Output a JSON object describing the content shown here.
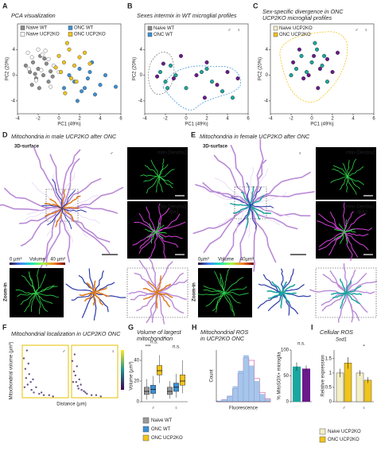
{
  "panels": {
    "A": {
      "label": "A",
      "title": "PCA visualization",
      "xlabel": "PC1 (49%)",
      "ylabel": "PC2 (20%)",
      "xlim": [
        -4,
        6
      ],
      "ylim": [
        -6,
        8
      ],
      "xticks": [
        -4,
        -2,
        0,
        2,
        4,
        6
      ],
      "yticks": [
        -4,
        0,
        4
      ],
      "series": [
        {
          "name": "Naive WT",
          "color": "#8c8c8c",
          "edge": "#555",
          "x": [
            -3.2,
            -2.8,
            -2.5,
            -2.2,
            -2,
            -1.8,
            -1.5,
            -1.2,
            -1,
            -0.8,
            -2.6,
            -1.9,
            -1.4,
            -0.6,
            -2.3
          ],
          "values": [
            1.5,
            0.5,
            2,
            -0.5,
            1,
            3,
            0,
            1.8,
            -1,
            0.6,
            -1.5,
            -2,
            2.6,
            -0.2,
            0.2
          ]
        },
        {
          "name": "Naive UCP2KO",
          "color": "#ffffff",
          "edge": "#666",
          "x": [
            -3,
            -2.6,
            -2,
            -1.6,
            -1,
            -0.5,
            -1.7,
            -2.2,
            -0.8,
            -1.3,
            -2.9,
            0
          ],
          "values": [
            3.5,
            2.8,
            4,
            3.2,
            2.5,
            1.5,
            0.8,
            -0.8,
            -1.8,
            3.8,
            1,
            0.5
          ]
        },
        {
          "name": "ONC WT",
          "color": "#3a8fd6",
          "edge": "#555",
          "x": [
            1,
            1.5,
            2,
            2.5,
            3,
            3.5,
            4,
            4.5,
            2.2,
            3.2,
            1.8,
            5.5,
            0.5,
            2.8
          ],
          "values": [
            0,
            -1,
            1,
            -2,
            0.5,
            -3,
            -1.5,
            0,
            -2.5,
            2,
            -4,
            -1.8,
            -2,
            -0.5
          ]
        },
        {
          "name": "ONC UCP2KO",
          "color": "#f2c418",
          "edge": "#555",
          "x": [
            0,
            0.5,
            1,
            1.5,
            2,
            0.2,
            1.2,
            2.5,
            0.8,
            -0.3,
            1.7,
            3,
            0.6
          ],
          "values": [
            3,
            2,
            4,
            1.5,
            2.8,
            0.5,
            -0.5,
            3.5,
            5,
            1.2,
            -1,
            1.8,
            -2.8
          ]
        }
      ]
    },
    "B": {
      "label": "B",
      "title": [
        "Sexes intermix in WT microglial profiles"
      ],
      "xlabel": "PC1 (49%)",
      "ylabel": "PC2 (20%)",
      "xlim": [
        -4,
        6
      ],
      "ylim": [
        -6,
        8
      ],
      "xticks": [
        -4,
        -2,
        0,
        2,
        4,
        6
      ],
      "yticks": [
        -4,
        0,
        4
      ],
      "groups": [
        {
          "name": "Naive WT",
          "color": "#8c8c8c"
        },
        {
          "name": "ONC WT",
          "color": "#3a8fd6"
        }
      ],
      "series": [
        {
          "name": "♂",
          "color": "#1aa7a0",
          "edge": "#333",
          "x": [
            -2.5,
            -2,
            -1.5,
            -1,
            0,
            1.5,
            2.5,
            3.5,
            4.5,
            2,
            -1.8
          ],
          "values": [
            0.5,
            -1,
            1.5,
            0,
            -2,
            0.5,
            -1,
            -2.5,
            -3.5,
            1,
            -2
          ]
        },
        {
          "name": "♀",
          "color": "#6b1a8c",
          "edge": "#333",
          "x": [
            -2.2,
            -1.2,
            -0.5,
            1,
            2,
            3,
            4,
            5,
            -2.8,
            1.8
          ],
          "values": [
            1.8,
            -0.5,
            3,
            0,
            2,
            -1.5,
            0.5,
            -0.5,
            -0.2,
            -3.5
          ]
        }
      ]
    },
    "C": {
      "label": "C",
      "title": [
        "Sex-specific divergence in ONC",
        "UCP2KO microglial profiles"
      ],
      "xlabel": "PC1 (49%)",
      "ylabel": "PC2 (20%)",
      "xlim": [
        -4,
        6
      ],
      "ylim": [
        -6,
        8
      ],
      "xticks": [
        -4,
        -2,
        0,
        2,
        4,
        6
      ],
      "yticks": [
        -4,
        0,
        4
      ],
      "groups": [
        {
          "name": "Naive UCP2KO",
          "color": "#f5efc6"
        },
        {
          "name": "ONC UCP2KO",
          "color": "#f2c418"
        }
      ],
      "series": [
        {
          "name": "♂",
          "color": "#1aa7a0",
          "edge": "#333",
          "x": [
            -1.5,
            -1,
            -0.5,
            0,
            0.5,
            1,
            1.5,
            -2,
            0.3,
            1.2
          ],
          "values": [
            1,
            3,
            0.5,
            2,
            4,
            1.5,
            -1,
            0,
            5,
            3
          ]
        },
        {
          "name": "♀",
          "color": "#6b1a8c",
          "edge": "#333",
          "x": [
            -1.8,
            -0.8,
            0.2,
            0.8,
            1.5,
            2,
            -1.2,
            0.6,
            2.5,
            -0.3
          ],
          "values": [
            2,
            -0.5,
            3,
            1,
            2.5,
            0.5,
            4,
            -2,
            3.5,
            0
          ]
        }
      ]
    },
    "D": {
      "label": "D",
      "title": "Mitochondria in male UCP2KO after ONC",
      "view": "3D-surface",
      "sex": "♂",
      "channel_top": "mito-Dendra2",
      "channel_bottom": [
        "mito-Dendra2",
        "IBA1"
      ],
      "colorbar": {
        "min": "0 µm³",
        "name": "Volume",
        "max": "40 µm³"
      },
      "zoom": "Zoom-in"
    },
    "E": {
      "label": "E",
      "title": "Mitochondria in female UCP2KO after ONC",
      "view": "3D-surface",
      "sex": "♀",
      "channel_top": "mito-Dendra2",
      "channel_bottom": [
        "mito-Dendra2",
        "IBA1"
      ],
      "colorbar": {
        "min": "0µm³",
        "name": "Volume",
        "max": "40µm³"
      },
      "zoom": "Zoom-in"
    },
    "F": {
      "label": "F",
      "title": "Mitochondrial localization in UCP2KO ONC",
      "xlabel": "Distance (µm)",
      "ylabel": "Mitochondrial volume (µm³)",
      "xlim": [
        0,
        60
      ],
      "ylim": [
        0,
        40
      ],
      "series": [
        {
          "name": "♂",
          "color": "#46266e",
          "x": [
            2,
            4,
            5,
            7,
            9,
            12,
            15,
            18,
            22,
            28,
            35,
            40,
            8,
            3,
            11,
            25,
            6,
            14
          ],
          "values": [
            30,
            22,
            15,
            10,
            18,
            6,
            4,
            8,
            3,
            2,
            2,
            1,
            26,
            8,
            12,
            4,
            36,
            14
          ]
        },
        {
          "name": "♀",
          "color": "#46266e",
          "x": [
            1,
            3,
            5,
            6,
            8,
            10,
            13,
            16,
            20,
            26,
            32,
            38,
            4,
            9,
            18,
            7,
            2,
            12
          ],
          "values": [
            28,
            20,
            17,
            12,
            9,
            14,
            6,
            5,
            3,
            2,
            2,
            1,
            33,
            7,
            4,
            24,
            12,
            10
          ]
        }
      ]
    },
    "G": {
      "label": "G",
      "title": [
        "Volume of largest",
        "mitochondrion"
      ],
      "ylabel": "Volume (µm³)",
      "ylim": [
        0,
        50
      ],
      "yticks": [
        0,
        20,
        40
      ],
      "categories": [
        "♂",
        "♀"
      ],
      "annotations": [
        "***",
        "n.s.",
        "n.s.",
        "*"
      ],
      "series": [
        {
          "name": "Naive WT",
          "color": "#9a9a9a",
          "min": [
            2,
            3
          ],
          "q1": [
            7,
            7
          ],
          "median": [
            10,
            10
          ],
          "q3": [
            14,
            14
          ],
          "max": [
            22,
            20
          ]
        },
        {
          "name": "ONC WT",
          "color": "#3a8fd6",
          "min": [
            3,
            4
          ],
          "q1": [
            8,
            10
          ],
          "median": [
            12,
            14
          ],
          "q3": [
            16,
            18
          ],
          "max": [
            25,
            27
          ]
        },
        {
          "name": "ONC UCP2KO",
          "color": "#f2c418",
          "min": [
            18,
            8
          ],
          "q1": [
            26,
            16
          ],
          "median": [
            30,
            20
          ],
          "q3": [
            35,
            26
          ],
          "max": [
            45,
            40
          ]
        }
      ]
    },
    "H": {
      "label": "H",
      "title": [
        "Mitochondrial ROS",
        "in UCP2KO ONC"
      ],
      "xlabel": "Fluorescence",
      "ylabel": "Count",
      "histogram": {
        "bins": [
          0,
          1,
          2,
          3,
          4,
          5,
          6,
          7,
          8,
          9,
          10
        ],
        "xlim": [
          0,
          10
        ],
        "ylim": [
          0,
          100
        ],
        "series": [
          {
            "color": "#d47ab4",
            "values": [
              1,
              4,
              10,
              25,
              55,
              85,
              80,
              45,
              18,
              6
            ]
          },
          {
            "color": "#8fb8e6",
            "values": [
              2,
              5,
              12,
              30,
              60,
              90,
              70,
              40,
              15,
              5
            ]
          }
        ]
      },
      "bars": {
        "ylabel": "% MitoSOX+ microglia",
        "ylim": [
          0,
          100
        ],
        "yticks": [
          0,
          50,
          100
        ],
        "values": [
          68,
          64
        ],
        "errors": [
          8,
          6
        ],
        "colors": [
          "#1aa7a0",
          "#6b1a8c"
        ],
        "annotation": "n.s."
      }
    },
    "I": {
      "label": "I",
      "title": "Cellular ROS",
      "subtitle": "Sod1",
      "ylabel": "Relative expression",
      "ylim": [
        0,
        1.8
      ],
      "yticks": [
        0,
        0.5,
        1,
        1.5
      ],
      "categories": [
        "♂",
        "♀"
      ],
      "annotation": "*",
      "series": [
        {
          "name": "Naive UCP2KO",
          "color": "#f5efc6",
          "values": [
            1,
            1
          ],
          "errors": [
            0.15,
            0.1
          ]
        },
        {
          "name": "ONC UCP2KO",
          "color": "#f2c418",
          "values": [
            1.35,
            0.75
          ],
          "errors": [
            0.2,
            0.1
          ]
        }
      ]
    }
  }
}
